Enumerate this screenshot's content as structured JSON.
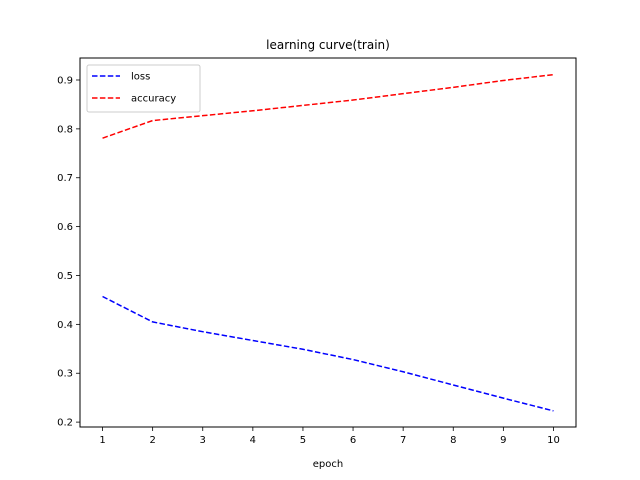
{
  "chart_data": {
    "type": "line",
    "title": "learning curve(train)",
    "xlabel": "epoch",
    "ylabel": "",
    "x": [
      1,
      2,
      3,
      4,
      5,
      6,
      7,
      8,
      9,
      10
    ],
    "xlim": [
      0.55,
      10.45
    ],
    "ylim": [
      0.19,
      0.945
    ],
    "xticks": [
      1,
      2,
      3,
      4,
      5,
      6,
      7,
      8,
      9,
      10
    ],
    "yticks": [
      0.2,
      0.3,
      0.4,
      0.5,
      0.6,
      0.7,
      0.8,
      0.9
    ],
    "ytick_labels": [
      "0.2",
      "0.3",
      "0.4",
      "0.5",
      "0.6",
      "0.7",
      "0.8",
      "0.9"
    ],
    "grid": false,
    "legend_position": "top-left",
    "series": [
      {
        "name": "loss",
        "color": "#0000ff",
        "style": "dashed",
        "values": [
          0.457,
          0.405,
          0.385,
          0.367,
          0.349,
          0.328,
          0.303,
          0.276,
          0.249,
          0.223
        ]
      },
      {
        "name": "accuracy",
        "color": "#ff0000",
        "style": "dashed",
        "values": [
          0.781,
          0.817,
          0.827,
          0.837,
          0.848,
          0.859,
          0.872,
          0.885,
          0.899,
          0.911
        ]
      }
    ]
  }
}
